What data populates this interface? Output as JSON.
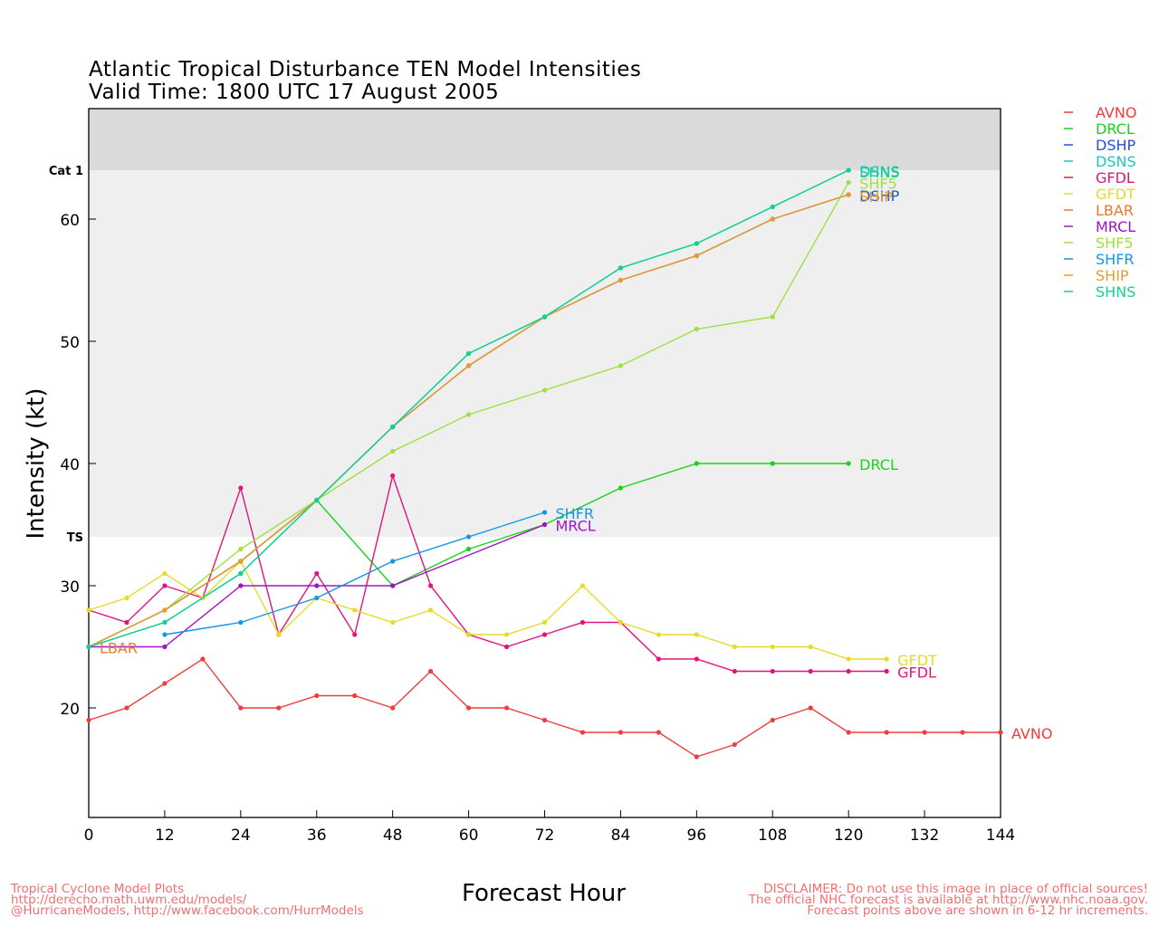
{
  "title_line1": "Atlantic Tropical Disturbance TEN Model Intensities",
  "title_line2": "Valid Time: 1800 UTC 17 August 2005",
  "footer_left": [
    "Tropical Cyclone Model Plots",
    "http://derecho.math.uwm.edu/models/",
    "@HurricaneModels, http://www.facebook.com/HurrModels"
  ],
  "footer_right": [
    "DISCLAIMER: Do not use this image in place of official sources!",
    "The official NHC forecast is available at http://www.nhc.noaa.gov.",
    "Forecast points above are shown in 6-12 hr increments."
  ],
  "chart_data": {
    "type": "line",
    "title": "Atlantic Tropical Disturbance TEN Model Intensities",
    "subtitle": "Valid Time: 1800 UTC 17 August 2005",
    "xlabel": "Forecast Hour",
    "ylabel": "Intensity (kt)",
    "xlim": [
      0,
      144
    ],
    "ylim": [
      10,
      68
    ],
    "xticks": [
      0,
      12,
      24,
      36,
      48,
      60,
      72,
      84,
      96,
      108,
      120,
      132,
      144
    ],
    "yticks": [
      20,
      30,
      40,
      50,
      60
    ],
    "category_lines": [
      {
        "label": "TS",
        "value": 34
      },
      {
        "label": "Cat 1",
        "value": 64
      }
    ],
    "legend_position": "right",
    "grid": false,
    "series": [
      {
        "name": "AVNO",
        "color": "#f03c3c",
        "x": [
          0,
          6,
          12,
          18,
          24,
          30,
          36,
          42,
          48,
          54,
          60,
          66,
          72,
          78,
          84,
          90,
          96,
          102,
          108,
          114,
          120,
          126,
          132,
          138,
          144
        ],
        "y": [
          19,
          20,
          22,
          24,
          20,
          20,
          21,
          21,
          20,
          23,
          20,
          20,
          19,
          18,
          18,
          18,
          16,
          17,
          19,
          20,
          18,
          18,
          18,
          18,
          18
        ]
      },
      {
        "name": "DRCL",
        "color": "#18d418",
        "x": [
          0,
          12,
          24,
          36,
          48,
          60,
          72,
          84,
          96,
          108,
          120
        ],
        "y": [
          25,
          28,
          32,
          37,
          30,
          33,
          35,
          38,
          40,
          40,
          40
        ]
      },
      {
        "name": "DSHP",
        "color": "#2450e0",
        "x": [
          0,
          12,
          24,
          36,
          48,
          60,
          72,
          84,
          96,
          108,
          120
        ],
        "y": [
          25,
          28,
          32,
          37,
          43,
          48,
          52,
          55,
          57,
          60,
          62
        ]
      },
      {
        "name": "DSNS",
        "color": "#18c8c0",
        "x": [
          0,
          12,
          24,
          36,
          48,
          60,
          72,
          84,
          96,
          108,
          120
        ],
        "y": [
          25,
          27,
          31,
          37,
          43,
          49,
          52,
          56,
          58,
          61,
          64
        ]
      },
      {
        "name": "GFDL",
        "color": "#e0147c",
        "x": [
          0,
          6,
          12,
          18,
          24,
          30,
          36,
          42,
          48,
          54,
          60,
          66,
          72,
          78,
          84,
          90,
          96,
          102,
          108,
          114,
          120,
          126
        ],
        "y": [
          28,
          27,
          30,
          29,
          38,
          26,
          31,
          26,
          39,
          30,
          26,
          25,
          26,
          27,
          27,
          24,
          24,
          23,
          23,
          23,
          23,
          23
        ]
      },
      {
        "name": "GFDT",
        "color": "#e6dc28",
        "x": [
          0,
          6,
          12,
          18,
          24,
          30,
          36,
          42,
          48,
          54,
          60,
          66,
          72,
          78,
          84,
          90,
          96,
          102,
          108,
          114,
          120,
          126
        ],
        "y": [
          28,
          29,
          31,
          29,
          32,
          26,
          29,
          28,
          27,
          28,
          26,
          26,
          27,
          30,
          27,
          26,
          26,
          25,
          25,
          25,
          24,
          24
        ]
      },
      {
        "name": "LBAR",
        "color": "#e87830",
        "x": [
          0,
          12,
          24,
          36,
          48,
          60,
          72,
          84,
          96,
          108,
          120
        ],
        "y": [
          25,
          28,
          32,
          37,
          43,
          48,
          52,
          55,
          57,
          60,
          62
        ]
      },
      {
        "name": "MRCL",
        "color": "#a014c8",
        "x": [
          0,
          12,
          24,
          36,
          48,
          72
        ],
        "y": [
          25,
          25,
          30,
          30,
          30,
          35
        ]
      },
      {
        "name": "SHF5",
        "color": "#a0e040",
        "x": [
          0,
          12,
          24,
          36,
          48,
          60,
          72,
          84,
          96,
          108,
          120
        ],
        "y": [
          25,
          28,
          33,
          37,
          41,
          44,
          46,
          48,
          51,
          52,
          63
        ]
      },
      {
        "name": "SHFR",
        "color": "#1496e8",
        "x": [
          12,
          24,
          36,
          48,
          60,
          72
        ],
        "y": [
          26,
          27,
          29,
          32,
          34,
          36
        ]
      },
      {
        "name": "SHIP",
        "color": "#e0a030",
        "x": [
          0,
          12,
          24,
          36,
          48,
          60,
          72,
          84,
          96,
          108,
          120
        ],
        "y": [
          25,
          28,
          32,
          37,
          43,
          48,
          52,
          55,
          57,
          60,
          62
        ]
      },
      {
        "name": "SHNS",
        "color": "#14d090",
        "x": [
          0,
          12,
          24,
          36,
          48,
          60,
          72,
          84,
          96,
          108,
          120
        ],
        "y": [
          25,
          27,
          31,
          37,
          43,
          49,
          52,
          56,
          58,
          61,
          64
        ]
      }
    ],
    "end_labels": [
      {
        "text": "AVNO",
        "series": "AVNO"
      },
      {
        "text": "DRCL",
        "series": "DRCL"
      },
      {
        "text": "GFDT",
        "series": "GFDT"
      },
      {
        "text": "GFDL",
        "series": "GFDL"
      },
      {
        "text": "SHFR",
        "series": "SHFR"
      },
      {
        "text": "MRCL",
        "series": "MRCL"
      },
      {
        "text": "SHF5",
        "series": "SHF5"
      },
      {
        "text": "DSHP",
        "series": "DSHP"
      },
      {
        "text": "SHIP",
        "series": "SHIP"
      },
      {
        "text": "DSNS",
        "series": "DSNS"
      },
      {
        "text": "SHNS",
        "series": "SHNS"
      },
      {
        "text": "LBAR",
        "series": "LBAR",
        "at_start": true
      }
    ]
  }
}
